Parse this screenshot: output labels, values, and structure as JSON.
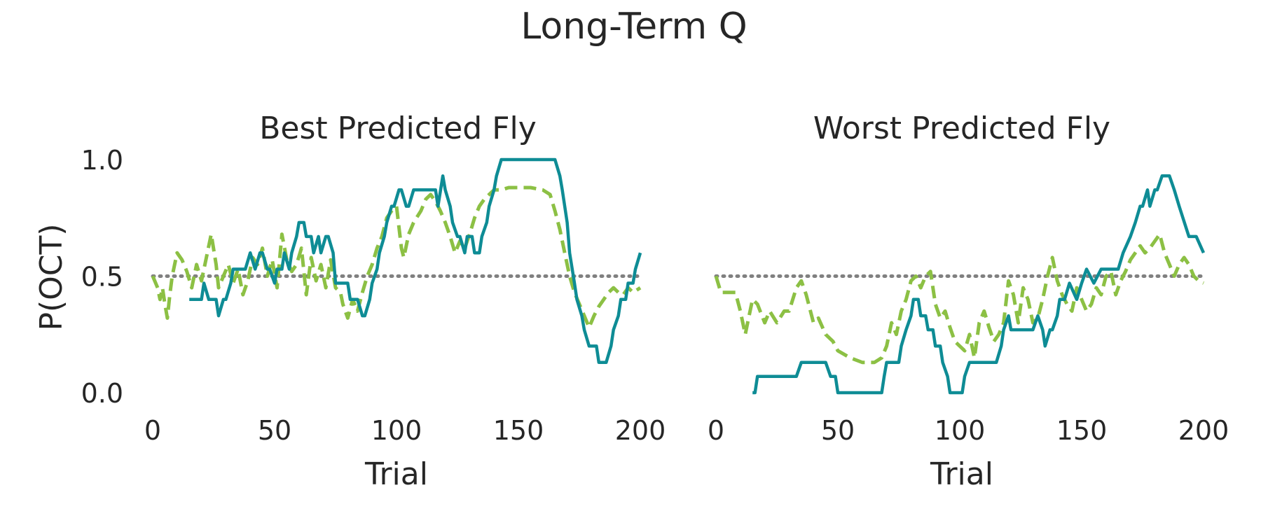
{
  "figure": {
    "suptitle": "Long-Term Q"
  },
  "colors": {
    "observed": "#0e8c95",
    "predicted": "#8cc044",
    "chance": "#808080"
  },
  "chart_data": [
    {
      "type": "line",
      "title": "Best Predicted Fly",
      "xlabel": "Trial",
      "ylabel": "P(OCT)",
      "xlim": [
        0,
        200
      ],
      "ylim": [
        0.0,
        1.0
      ],
      "xticks": [
        "0",
        "50",
        "100",
        "150",
        "200"
      ],
      "yticks": [
        "0.0",
        "0.5",
        "1.0"
      ],
      "grid": false,
      "legend": "none",
      "reference_line": {
        "y": 0.5,
        "style": "dotted"
      },
      "series": [
        {
          "style": "solid",
          "x": [
            15,
            17,
            18,
            20,
            21,
            23,
            24,
            26,
            27,
            29,
            30,
            32,
            33,
            35,
            36,
            38,
            40,
            42,
            44,
            45,
            47,
            48,
            50,
            51,
            53,
            54,
            56,
            57,
            59,
            60,
            62,
            63,
            65,
            66,
            68,
            69,
            71,
            72,
            74,
            75,
            77,
            78,
            80,
            81,
            83,
            84,
            86,
            87,
            89,
            90,
            92,
            93,
            95,
            96,
            98,
            99,
            101,
            102,
            104,
            105,
            107,
            108,
            110,
            111,
            113,
            114,
            116,
            117,
            119,
            120,
            122,
            123,
            125,
            126,
            128,
            129,
            131,
            132,
            134,
            135,
            137,
            138,
            140,
            141,
            143,
            145,
            150,
            155,
            160,
            163,
            165,
            167,
            168,
            170,
            171,
            173,
            174,
            176,
            177,
            179,
            180,
            182,
            183,
            185,
            186,
            188,
            189,
            191,
            192,
            194,
            195,
            197,
            198,
            200
          ],
          "y": [
            0.4,
            0.4,
            0.4,
            0.4,
            0.47,
            0.4,
            0.4,
            0.4,
            0.33,
            0.4,
            0.4,
            0.47,
            0.53,
            0.53,
            0.53,
            0.53,
            0.6,
            0.53,
            0.6,
            0.6,
            0.53,
            0.53,
            0.47,
            0.53,
            0.53,
            0.6,
            0.53,
            0.6,
            0.67,
            0.73,
            0.73,
            0.67,
            0.67,
            0.6,
            0.67,
            0.6,
            0.67,
            0.67,
            0.6,
            0.47,
            0.47,
            0.47,
            0.47,
            0.4,
            0.4,
            0.4,
            0.33,
            0.33,
            0.4,
            0.47,
            0.53,
            0.6,
            0.67,
            0.73,
            0.8,
            0.8,
            0.87,
            0.87,
            0.8,
            0.8,
            0.87,
            0.87,
            0.87,
            0.87,
            0.87,
            0.87,
            0.87,
            0.8,
            0.93,
            0.87,
            0.8,
            0.73,
            0.67,
            0.67,
            0.6,
            0.67,
            0.67,
            0.6,
            0.6,
            0.67,
            0.73,
            0.8,
            0.87,
            0.93,
            1.0,
            1.0,
            1.0,
            1.0,
            1.0,
            1.0,
            1.0,
            0.93,
            0.87,
            0.73,
            0.6,
            0.47,
            0.4,
            0.33,
            0.27,
            0.2,
            0.2,
            0.2,
            0.13,
            0.13,
            0.13,
            0.2,
            0.27,
            0.33,
            0.4,
            0.4,
            0.47,
            0.47,
            0.53,
            0.6
          ]
        },
        {
          "style": "dashed",
          "x": [
            0,
            2,
            3,
            4,
            5,
            6,
            7,
            8,
            10,
            12,
            14,
            16,
            18,
            20,
            22,
            24,
            26,
            27,
            29,
            31,
            33,
            35,
            37,
            39,
            41,
            43,
            45,
            47,
            49,
            51,
            53,
            55,
            57,
            59,
            61,
            63,
            65,
            67,
            69,
            71,
            73,
            75,
            77,
            78,
            80,
            82,
            84,
            86,
            88,
            90,
            92,
            94,
            96,
            98,
            100,
            102,
            103,
            105,
            107,
            110,
            112,
            114,
            116,
            118,
            120,
            122,
            124,
            126,
            128,
            130,
            132,
            134,
            136,
            138,
            140,
            143,
            146,
            150,
            155,
            160,
            163,
            165,
            167,
            169,
            171,
            173,
            175,
            177,
            179,
            181,
            183,
            185,
            187,
            189,
            191,
            193,
            195,
            197,
            200
          ],
          "y": [
            0.5,
            0.45,
            0.4,
            0.45,
            0.38,
            0.32,
            0.42,
            0.5,
            0.6,
            0.57,
            0.52,
            0.45,
            0.55,
            0.48,
            0.58,
            0.68,
            0.55,
            0.45,
            0.5,
            0.55,
            0.47,
            0.53,
            0.42,
            0.48,
            0.58,
            0.55,
            0.62,
            0.5,
            0.57,
            0.45,
            0.68,
            0.57,
            0.52,
            0.55,
            0.62,
            0.42,
            0.58,
            0.48,
            0.55,
            0.45,
            0.57,
            0.45,
            0.43,
            0.38,
            0.32,
            0.4,
            0.35,
            0.43,
            0.5,
            0.55,
            0.62,
            0.67,
            0.75,
            0.78,
            0.8,
            0.62,
            0.58,
            0.68,
            0.73,
            0.78,
            0.83,
            0.85,
            0.82,
            0.78,
            0.73,
            0.67,
            0.6,
            0.65,
            0.62,
            0.68,
            0.75,
            0.8,
            0.83,
            0.85,
            0.87,
            0.87,
            0.88,
            0.88,
            0.88,
            0.87,
            0.85,
            0.78,
            0.7,
            0.6,
            0.5,
            0.43,
            0.38,
            0.33,
            0.28,
            0.33,
            0.37,
            0.4,
            0.43,
            0.45,
            0.43,
            0.42,
            0.45,
            0.43,
            0.45
          ]
        }
      ]
    },
    {
      "type": "line",
      "title": "Worst Predicted Fly",
      "xlabel": "Trial",
      "ylabel": "",
      "xlim": [
        0,
        200
      ],
      "ylim": [
        0.0,
        1.0
      ],
      "xticks": [
        "0",
        "50",
        "100",
        "150",
        "200"
      ],
      "yticks": [],
      "grid": false,
      "legend": "none",
      "reference_line": {
        "y": 0.5,
        "style": "dotted"
      },
      "series": [
        {
          "style": "solid",
          "x": [
            15,
            16,
            17,
            20,
            25,
            30,
            33,
            34,
            35,
            40,
            45,
            46,
            47,
            49,
            50,
            55,
            60,
            65,
            68,
            69,
            70,
            72,
            75,
            76,
            78,
            80,
            81,
            83,
            84,
            86,
            87,
            89,
            90,
            92,
            93,
            95,
            96,
            98,
            99,
            101,
            102,
            104,
            105,
            107,
            108,
            110,
            112,
            115,
            117,
            118,
            120,
            121,
            123,
            125,
            128,
            130,
            132,
            134,
            135,
            137,
            138,
            140,
            141,
            143,
            145,
            148,
            150,
            152,
            155,
            158,
            160,
            162,
            165,
            167,
            170,
            172,
            174,
            175,
            177,
            178,
            180,
            181,
            183,
            185,
            186,
            188,
            190,
            194,
            195,
            197,
            200
          ],
          "y": [
            0.0,
            0.0,
            0.07,
            0.07,
            0.07,
            0.07,
            0.07,
            0.1,
            0.13,
            0.13,
            0.13,
            0.1,
            0.07,
            0.07,
            0.0,
            0.0,
            0.0,
            0.0,
            0.0,
            0.07,
            0.13,
            0.13,
            0.13,
            0.2,
            0.27,
            0.33,
            0.4,
            0.4,
            0.33,
            0.33,
            0.27,
            0.27,
            0.2,
            0.2,
            0.13,
            0.07,
            0.0,
            0.0,
            0.0,
            0.0,
            0.07,
            0.13,
            0.13,
            0.13,
            0.13,
            0.13,
            0.13,
            0.13,
            0.2,
            0.27,
            0.33,
            0.27,
            0.27,
            0.27,
            0.27,
            0.27,
            0.33,
            0.27,
            0.2,
            0.27,
            0.27,
            0.33,
            0.4,
            0.4,
            0.47,
            0.4,
            0.47,
            0.53,
            0.47,
            0.53,
            0.53,
            0.53,
            0.53,
            0.6,
            0.67,
            0.73,
            0.8,
            0.8,
            0.87,
            0.8,
            0.87,
            0.87,
            0.93,
            0.93,
            0.93,
            0.87,
            0.8,
            0.67,
            0.67,
            0.67,
            0.6
          ]
        },
        {
          "style": "dashed",
          "x": [
            0,
            2,
            4,
            6,
            8,
            10,
            11,
            12,
            13,
            15,
            17,
            20,
            22,
            25,
            28,
            30,
            33,
            35,
            37,
            40,
            42,
            45,
            48,
            50,
            55,
            60,
            65,
            68,
            70,
            72,
            74,
            76,
            78,
            80,
            82,
            84,
            86,
            88,
            90,
            92,
            94,
            96,
            98,
            100,
            102,
            104,
            106,
            108,
            110,
            112,
            114,
            116,
            118,
            120,
            122,
            124,
            126,
            128,
            130,
            132,
            134,
            136,
            138,
            140,
            142,
            144,
            146,
            148,
            150,
            152,
            154,
            156,
            158,
            160,
            162,
            164,
            166,
            168,
            170,
            172,
            174,
            176,
            178,
            180,
            182,
            184,
            186,
            188,
            190,
            192,
            194,
            196,
            198,
            200
          ],
          "y": [
            0.5,
            0.43,
            0.43,
            0.43,
            0.43,
            0.35,
            0.3,
            0.25,
            0.3,
            0.4,
            0.38,
            0.3,
            0.35,
            0.3,
            0.35,
            0.35,
            0.45,
            0.48,
            0.42,
            0.3,
            0.32,
            0.25,
            0.22,
            0.18,
            0.15,
            0.13,
            0.13,
            0.15,
            0.2,
            0.3,
            0.25,
            0.35,
            0.4,
            0.48,
            0.5,
            0.45,
            0.5,
            0.52,
            0.38,
            0.32,
            0.35,
            0.28,
            0.22,
            0.2,
            0.18,
            0.25,
            0.15,
            0.3,
            0.35,
            0.28,
            0.22,
            0.25,
            0.3,
            0.48,
            0.42,
            0.3,
            0.45,
            0.4,
            0.3,
            0.32,
            0.4,
            0.5,
            0.58,
            0.48,
            0.42,
            0.38,
            0.35,
            0.45,
            0.4,
            0.35,
            0.38,
            0.45,
            0.42,
            0.5,
            0.52,
            0.42,
            0.48,
            0.52,
            0.57,
            0.6,
            0.63,
            0.6,
            0.62,
            0.65,
            0.68,
            0.6,
            0.55,
            0.5,
            0.55,
            0.58,
            0.55,
            0.5,
            0.48,
            0.47
          ]
        }
      ]
    }
  ]
}
